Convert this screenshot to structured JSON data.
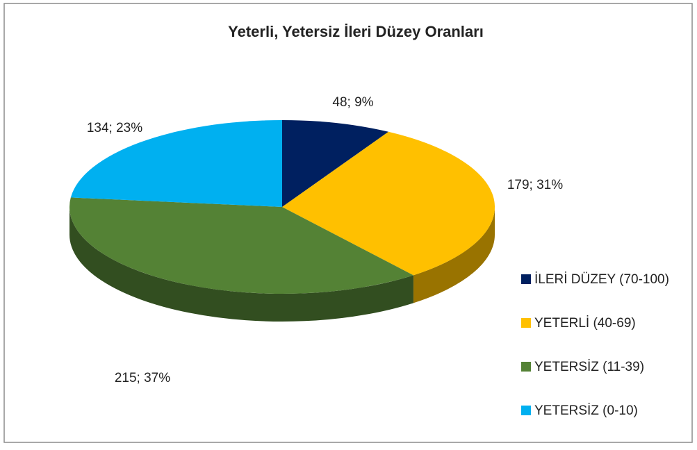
{
  "chart_data": {
    "type": "pie",
    "title": "Yeterli, Yetersiz İleri Düzey Oranları",
    "categories": [
      "İLERİ DÜZEY (70-100)",
      "YETERLİ (40-69)",
      "YETERSİZ (11-39)",
      "YETERSİZ (0-10)"
    ],
    "values": [
      48,
      179,
      215,
      134
    ],
    "value_labels": [
      "48; 9%",
      "179; 31%",
      "215; 37%",
      "134; 23%"
    ],
    "colors": [
      "#002060",
      "#FFC000",
      "#548235",
      "#00B0F0"
    ],
    "legend": "right"
  }
}
